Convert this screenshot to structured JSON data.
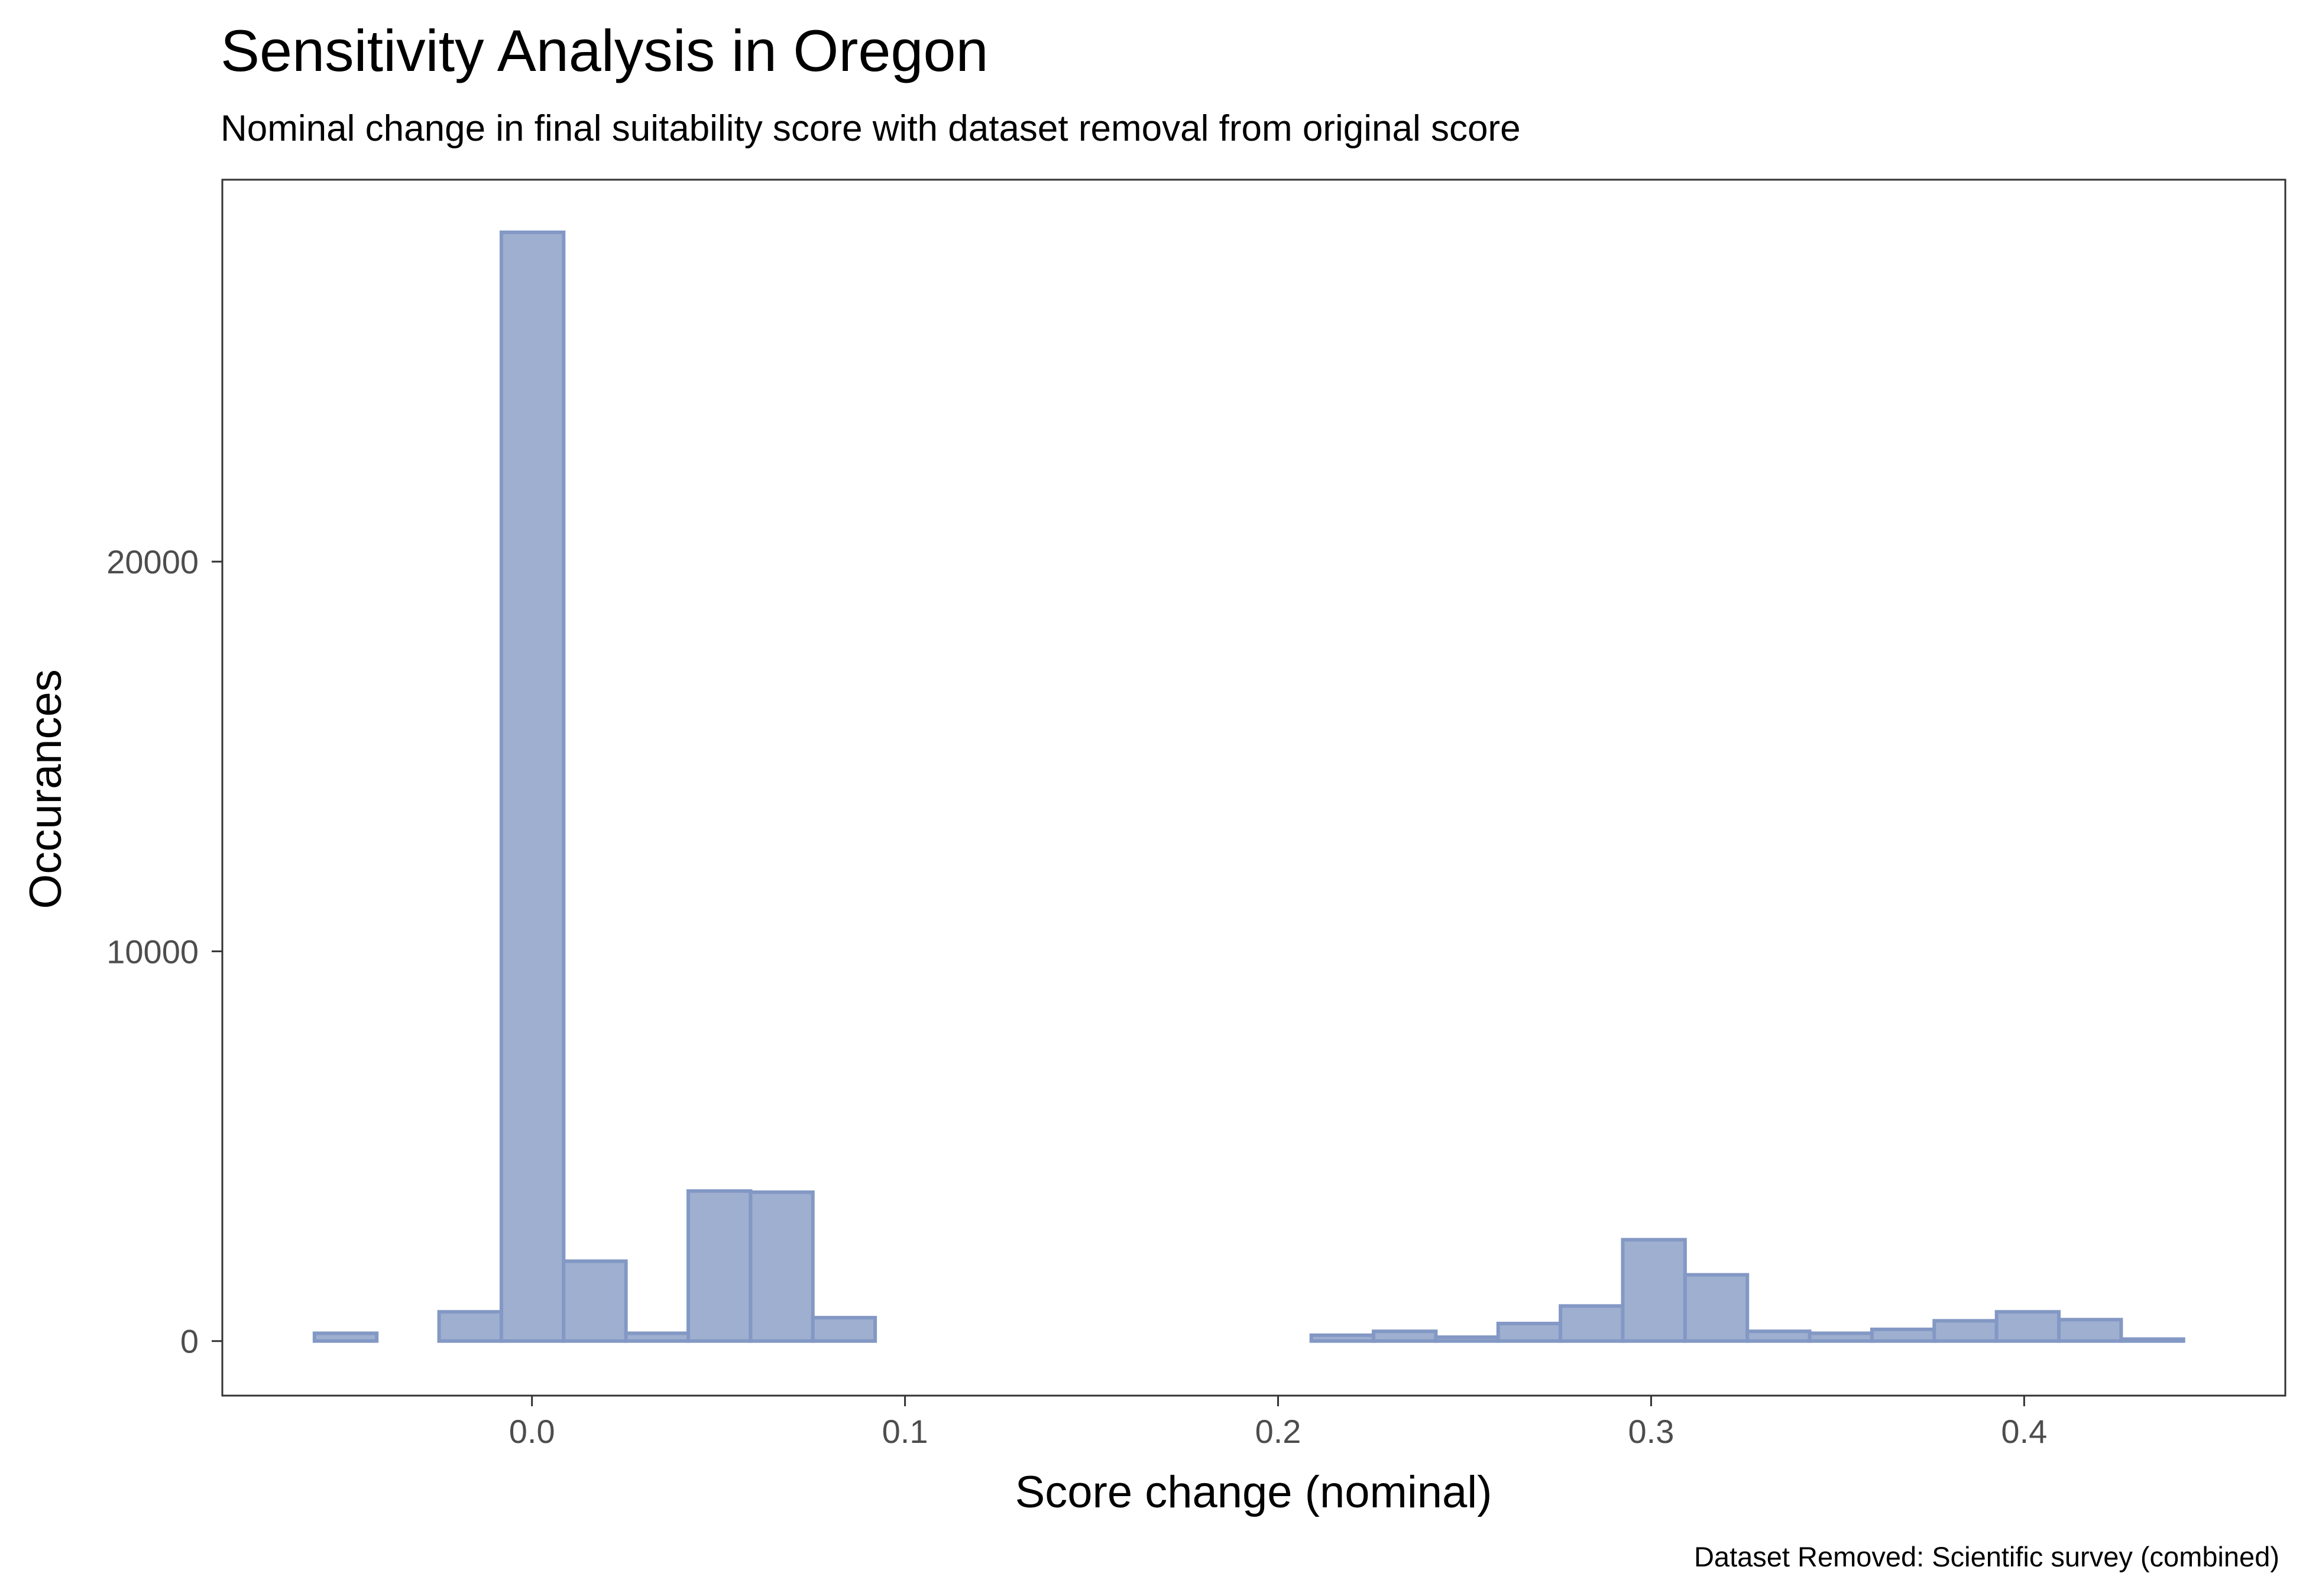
{
  "chart_data": {
    "type": "bar",
    "title": "Sensitivity Analysis in Oregon",
    "subtitle": "Nominal change in final suitability score with dataset removal from original score",
    "xlabel": "Score change (nominal)",
    "ylabel": "Occurances",
    "caption": "Dataset Removed: Scientific survey (combined)",
    "xlim": [
      -0.083,
      0.47
    ],
    "ylim": [
      -1400,
      29800
    ],
    "x_ticks": [
      0.0,
      0.1,
      0.2,
      0.3,
      0.4
    ],
    "x_tick_labels": [
      "0.0",
      "0.1",
      "0.2",
      "0.3",
      "0.4"
    ],
    "y_ticks": [
      0,
      10000,
      20000
    ],
    "y_tick_labels": [
      "0",
      "10000",
      "20000"
    ],
    "bin_width": 0.0167,
    "bin_starts": [
      -0.0583,
      -0.0416,
      -0.0249,
      -0.0082,
      0.0085,
      0.0252,
      0.0419,
      0.0586,
      0.0753,
      0.092,
      0.1087,
      0.1254,
      0.1421,
      0.1588,
      0.1755,
      0.1922,
      0.2089,
      0.2256,
      0.2423,
      0.259,
      0.2757,
      0.2924,
      0.3091,
      0.3258,
      0.3425,
      0.3592,
      0.3759,
      0.3926,
      0.4093,
      0.426
    ],
    "values": [
      200,
      0,
      750,
      28450,
      2050,
      200,
      3850,
      3820,
      600,
      0,
      0,
      0,
      0,
      0,
      0,
      0,
      150,
      250,
      100,
      450,
      900,
      2600,
      1700,
      250,
      200,
      300,
      520,
      750,
      550,
      50
    ],
    "grid": false,
    "fill_color": "#9eafd0",
    "stroke_color": "#8398c4"
  }
}
